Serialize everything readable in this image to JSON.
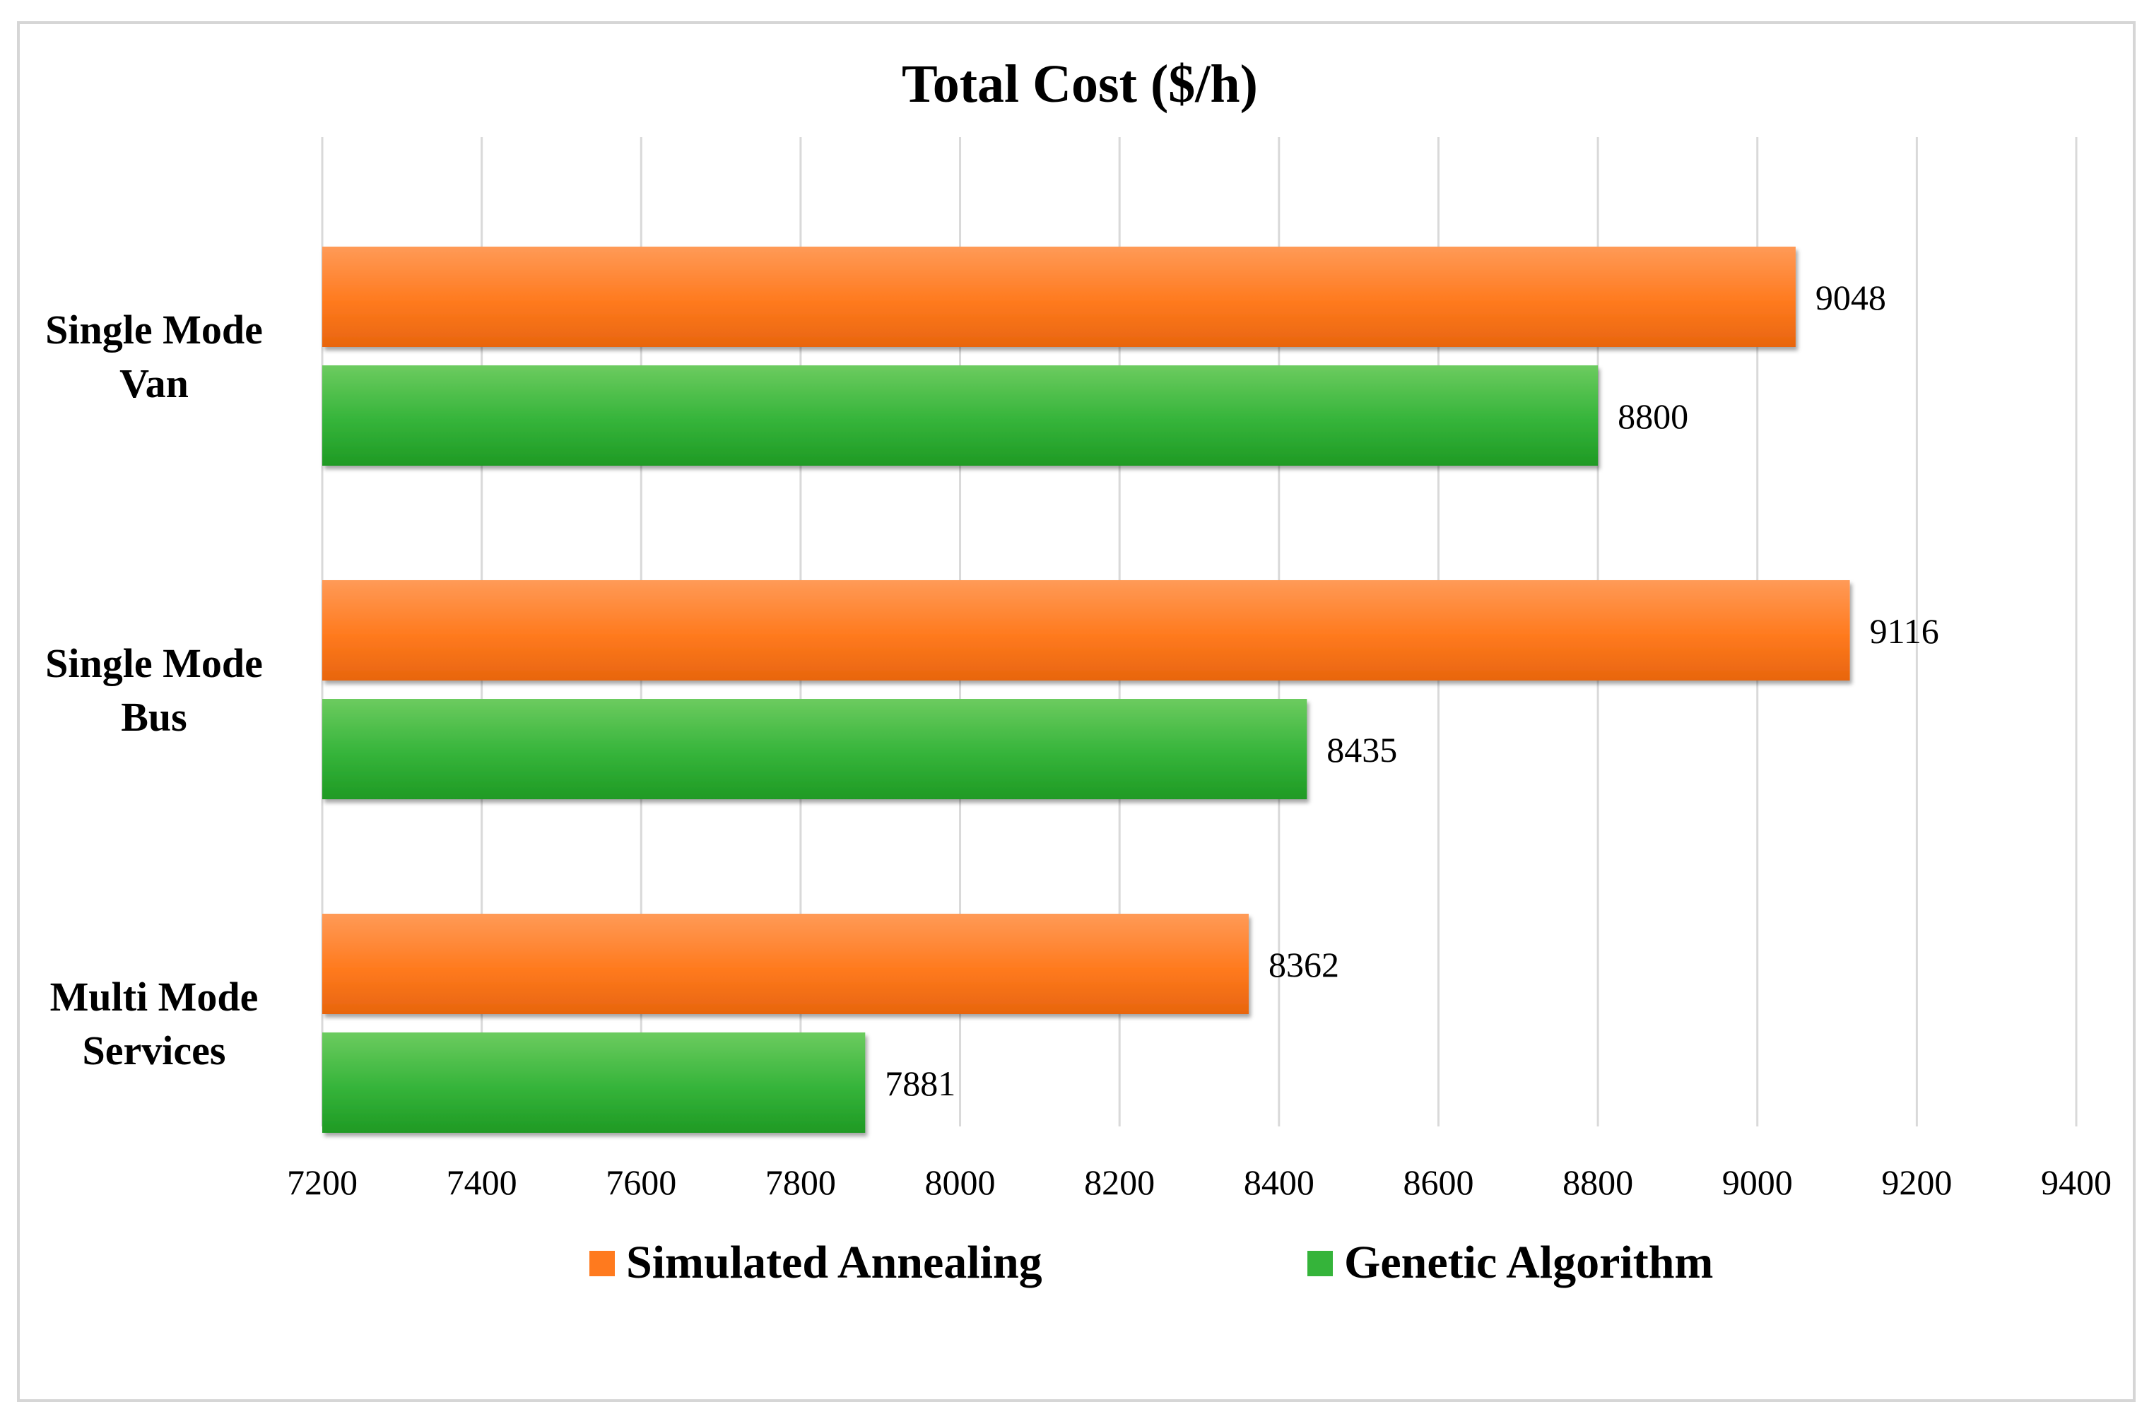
{
  "chart_data": {
    "type": "bar",
    "orientation": "horizontal",
    "title": "Total Cost ($/h)",
    "xlabel": "",
    "ylabel": "",
    "xlim": [
      7200,
      9400
    ],
    "x_ticks": [
      7200,
      7400,
      7600,
      7800,
      8000,
      8200,
      8400,
      8600,
      8800,
      9000,
      9200,
      9400
    ],
    "x_tick_labels": [
      "7200",
      "7400",
      "7600",
      "7800",
      "8000",
      "8200",
      "8400",
      "8600",
      "8800",
      "9000",
      "9200",
      "9400"
    ],
    "grid": true,
    "legend_position": "bottom",
    "categories": [
      {
        "lines": [
          "Single Mode",
          "Van"
        ]
      },
      {
        "lines": [
          "Single Mode",
          "Bus"
        ]
      },
      {
        "lines": [
          "Multi Mode",
          "Services"
        ]
      }
    ],
    "series": [
      {
        "name": "Simulated Annealing",
        "color": "#ff7a1e",
        "color_light": "#ff9a57",
        "color_dark": "#e8650e",
        "values": [
          9048,
          9116,
          8362
        ],
        "labels": [
          "9048",
          "9116",
          "8362"
        ]
      },
      {
        "name": "Genetic Algorithm",
        "color": "#35b43a",
        "color_light": "#6ccb5f",
        "color_dark": "#1f9a24",
        "values": [
          8800,
          8435,
          7881
        ],
        "labels": [
          "8800",
          "8435",
          "7881"
        ]
      }
    ]
  }
}
